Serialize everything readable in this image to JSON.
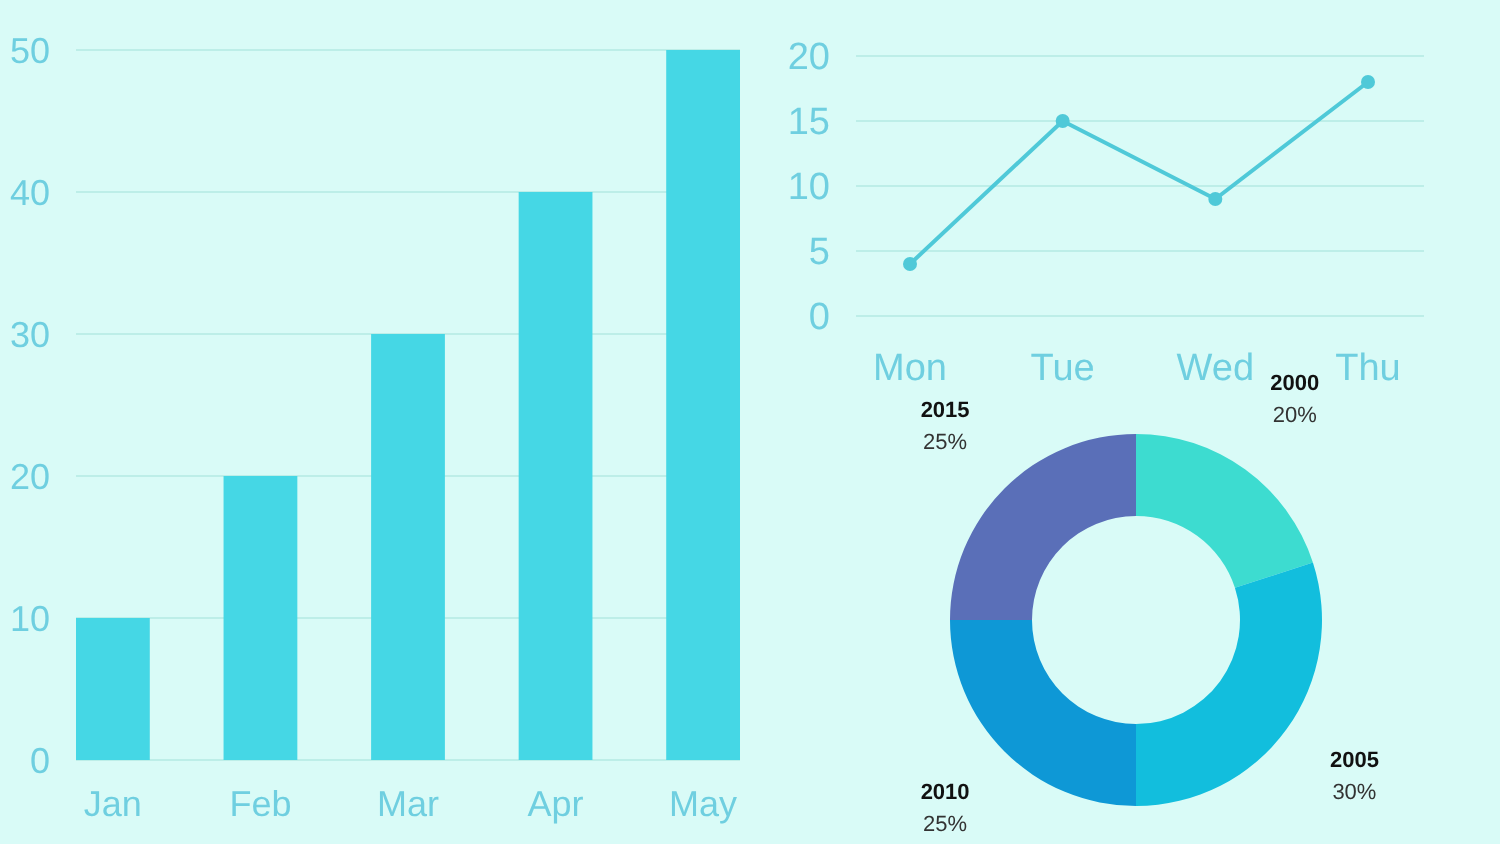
{
  "chart_data": [
    {
      "type": "bar",
      "categories": [
        "Jan",
        "Feb",
        "Mar",
        "Apr",
        "May"
      ],
      "values": [
        10,
        20,
        30,
        40,
        50
      ],
      "color": "#45d7e5",
      "ylim": [
        0,
        50
      ],
      "yticks": [
        0,
        10,
        20,
        30,
        40,
        50
      ],
      "grid": "y"
    },
    {
      "type": "line",
      "categories": [
        "Mon",
        "Tue",
        "Wed",
        "Thu"
      ],
      "values": [
        4,
        15,
        9,
        18
      ],
      "color": "#4fc9d8",
      "ylim": [
        0,
        20
      ],
      "yticks": [
        0,
        5,
        10,
        15,
        20
      ],
      "grid": "y",
      "marker": "circle"
    },
    {
      "type": "donut",
      "categories": [
        "2000",
        "2005",
        "2010",
        "2015"
      ],
      "values": [
        20,
        30,
        25,
        25
      ],
      "colors": [
        "#3ddcd0",
        "#12bedd",
        "#0e98d6",
        "#5a6fb8"
      ],
      "value_labels": [
        "20%",
        "30%",
        "25%",
        "25%"
      ]
    }
  ]
}
